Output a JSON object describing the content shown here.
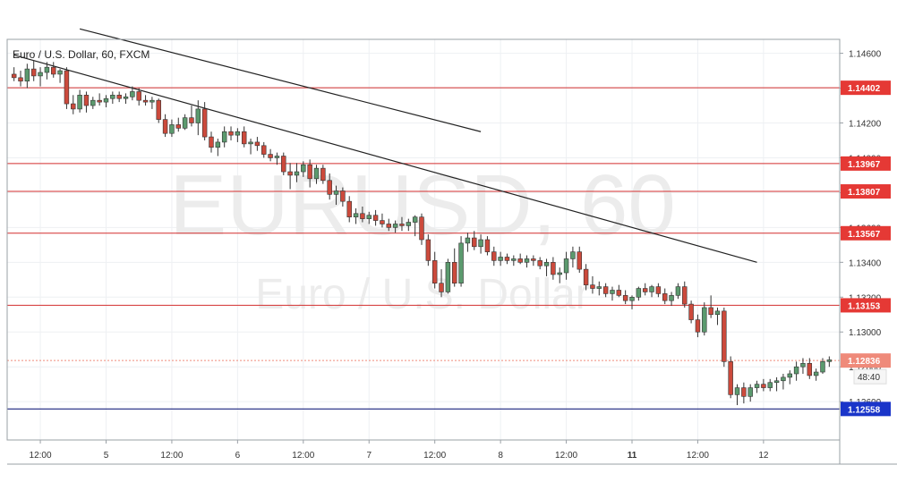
{
  "legend": {
    "text": "Euro / U.S. Dollar, 60, FXCM"
  },
  "watermark": {
    "main": "EURUSD, 60",
    "sub": "Euro / U.S. Dollar"
  },
  "colors": {
    "up": "#5b9a6e",
    "down": "#cc4a3c",
    "level_line": "#d32f2f",
    "level_badge": "#e53935",
    "current_badge": "#ef8a7a",
    "low_line": "#1a237e",
    "low_badge": "#1a35c9",
    "trendline": "#222222",
    "grid": "#eef0f3",
    "axis_text": "#333333"
  },
  "chart_data": {
    "type": "candlestick",
    "symbol": "EURUSD",
    "timeframe": "60",
    "source": "FXCM",
    "title": "Euro / U.S. Dollar, 60, FXCM",
    "ylim": [
      1.1238,
      1.1468
    ],
    "y_ticks": [
      "1.14600",
      "1.14400",
      "1.14200",
      "1.14000",
      "1.13800",
      "1.13600",
      "1.13400",
      "1.13200",
      "1.13000",
      "1.12800",
      "1.12600"
    ],
    "x_ticks": [
      {
        "label": "12:00",
        "i": 4.5,
        "bold": false
      },
      {
        "label": "5",
        "i": 14.5,
        "bold": false
      },
      {
        "label": "12:00",
        "i": 24.5,
        "bold": false
      },
      {
        "label": "6",
        "i": 34.5,
        "bold": false
      },
      {
        "label": "12:00",
        "i": 44.5,
        "bold": false
      },
      {
        "label": "7",
        "i": 54.5,
        "bold": false
      },
      {
        "label": "12:00",
        "i": 64.5,
        "bold": false
      },
      {
        "label": "8",
        "i": 74.5,
        "bold": false
      },
      {
        "label": "12:00",
        "i": 84.5,
        "bold": false
      },
      {
        "label": "11",
        "i": 94.5,
        "bold": true
      },
      {
        "label": "12:00",
        "i": 104.5,
        "bold": false
      },
      {
        "label": "12",
        "i": 114.5,
        "bold": false
      }
    ],
    "levels": [
      {
        "value": 1.14402,
        "label": "1.14402"
      },
      {
        "value": 1.13967,
        "label": "1.13967"
      },
      {
        "value": 1.13807,
        "label": "1.13807"
      },
      {
        "value": 1.13567,
        "label": "1.13567"
      },
      {
        "value": 1.13153,
        "label": "1.13153"
      }
    ],
    "current": {
      "value": 1.12836,
      "label": "1.12836",
      "countdown": "48:40"
    },
    "low_level": {
      "value": 1.12558,
      "label": "1.12558"
    },
    "trendlines": [
      {
        "i1": 10.5,
        "p1": 1.1474,
        "i2": 71.5,
        "p2": 1.1415
      },
      {
        "i1": 0.5,
        "p1": 1.1459,
        "i2": 113.5,
        "p2": 1.134
      }
    ],
    "candles": [
      [
        1.1448,
        1.1452,
        1.1444,
        1.1446
      ],
      [
        1.1446,
        1.145,
        1.1441,
        1.1444
      ],
      [
        1.1444,
        1.1454,
        1.144,
        1.1451
      ],
      [
        1.1451,
        1.1456,
        1.1444,
        1.1447
      ],
      [
        1.1447,
        1.1452,
        1.1441,
        1.1449
      ],
      [
        1.1449,
        1.1455,
        1.1445,
        1.1452
      ],
      [
        1.1452,
        1.1455,
        1.1446,
        1.1448
      ],
      [
        1.1448,
        1.1451,
        1.1443,
        1.145
      ],
      [
        1.145,
        1.1452,
        1.1428,
        1.1431
      ],
      [
        1.1431,
        1.1436,
        1.1425,
        1.1428
      ],
      [
        1.1428,
        1.1439,
        1.1426,
        1.1436
      ],
      [
        1.1436,
        1.1438,
        1.1426,
        1.143
      ],
      [
        1.143,
        1.1435,
        1.1428,
        1.1433
      ],
      [
        1.1433,
        1.1437,
        1.143,
        1.1432
      ],
      [
        1.1432,
        1.1436,
        1.1429,
        1.1434
      ],
      [
        1.1434,
        1.1438,
        1.1431,
        1.1436
      ],
      [
        1.1436,
        1.1438,
        1.1432,
        1.1434
      ],
      [
        1.1434,
        1.1437,
        1.1431,
        1.1435
      ],
      [
        1.1435,
        1.1441,
        1.1433,
        1.1438
      ],
      [
        1.1438,
        1.144,
        1.143,
        1.1433
      ],
      [
        1.1433,
        1.1436,
        1.143,
        1.1432
      ],
      [
        1.1432,
        1.1435,
        1.1428,
        1.1433
      ],
      [
        1.1433,
        1.1434,
        1.142,
        1.1422
      ],
      [
        1.1422,
        1.1425,
        1.1412,
        1.1414
      ],
      [
        1.1414,
        1.1422,
        1.1412,
        1.1419
      ],
      [
        1.1419,
        1.1423,
        1.1415,
        1.1417
      ],
      [
        1.1417,
        1.1425,
        1.1416,
        1.1423
      ],
      [
        1.1423,
        1.143,
        1.1418,
        1.142
      ],
      [
        1.142,
        1.1433,
        1.1413,
        1.1428
      ],
      [
        1.1428,
        1.1432,
        1.141,
        1.1412
      ],
      [
        1.1412,
        1.1415,
        1.1403,
        1.1406
      ],
      [
        1.1406,
        1.1411,
        1.1401,
        1.1409
      ],
      [
        1.1409,
        1.1418,
        1.1406,
        1.1415
      ],
      [
        1.1415,
        1.1418,
        1.141,
        1.1413
      ],
      [
        1.1413,
        1.1417,
        1.1409,
        1.1415
      ],
      [
        1.1415,
        1.1418,
        1.1406,
        1.1408
      ],
      [
        1.1408,
        1.1411,
        1.1402,
        1.1409
      ],
      [
        1.1409,
        1.1412,
        1.1404,
        1.1407
      ],
      [
        1.1407,
        1.1409,
        1.14,
        1.1402
      ],
      [
        1.1402,
        1.1405,
        1.1398,
        1.14
      ],
      [
        1.14,
        1.1403,
        1.1396,
        1.1401
      ],
      [
        1.1401,
        1.1403,
        1.139,
        1.1392
      ],
      [
        1.1392,
        1.1397,
        1.1382,
        1.139
      ],
      [
        1.139,
        1.1397,
        1.1386,
        1.1392
      ],
      [
        1.1392,
        1.1398,
        1.1389,
        1.1396
      ],
      [
        1.1396,
        1.1399,
        1.1383,
        1.1388
      ],
      [
        1.1388,
        1.1396,
        1.1385,
        1.1394
      ],
      [
        1.1394,
        1.1396,
        1.1385,
        1.1387
      ],
      [
        1.1387,
        1.1391,
        1.1376,
        1.1379
      ],
      [
        1.1379,
        1.1384,
        1.1373,
        1.1381
      ],
      [
        1.1381,
        1.1383,
        1.1372,
        1.1375
      ],
      [
        1.1375,
        1.1378,
        1.1363,
        1.1366
      ],
      [
        1.1366,
        1.1371,
        1.1362,
        1.1368
      ],
      [
        1.1368,
        1.1372,
        1.1363,
        1.1365
      ],
      [
        1.1365,
        1.1369,
        1.1362,
        1.1367
      ],
      [
        1.1367,
        1.137,
        1.1361,
        1.1364
      ],
      [
        1.1364,
        1.1368,
        1.136,
        1.1362
      ],
      [
        1.1362,
        1.1365,
        1.1358,
        1.136
      ],
      [
        1.136,
        1.1364,
        1.1357,
        1.1362
      ],
      [
        1.1362,
        1.1366,
        1.1358,
        1.1361
      ],
      [
        1.1361,
        1.1365,
        1.1358,
        1.1363
      ],
      [
        1.1363,
        1.1367,
        1.1355,
        1.1366
      ],
      [
        1.1366,
        1.1368,
        1.135,
        1.1353
      ],
      [
        1.1353,
        1.1356,
        1.1338,
        1.1341
      ],
      [
        1.1341,
        1.1346,
        1.1325,
        1.1328
      ],
      [
        1.1328,
        1.1336,
        1.132,
        1.1323
      ],
      [
        1.1323,
        1.1342,
        1.1322,
        1.134
      ],
      [
        1.134,
        1.1348,
        1.1326,
        1.1328
      ],
      [
        1.1328,
        1.1355,
        1.1326,
        1.1351
      ],
      [
        1.1351,
        1.1357,
        1.1346,
        1.1354
      ],
      [
        1.1354,
        1.1358,
        1.1347,
        1.1349
      ],
      [
        1.1349,
        1.1356,
        1.1345,
        1.1353
      ],
      [
        1.1353,
        1.1355,
        1.1344,
        1.1346
      ],
      [
        1.1346,
        1.1349,
        1.1338,
        1.1341
      ],
      [
        1.1341,
        1.1346,
        1.1338,
        1.1343
      ],
      [
        1.1343,
        1.1345,
        1.1339,
        1.1341
      ],
      [
        1.1341,
        1.1344,
        1.1338,
        1.1342
      ],
      [
        1.1342,
        1.1345,
        1.1339,
        1.134
      ],
      [
        1.134,
        1.1344,
        1.1337,
        1.1342
      ],
      [
        1.1342,
        1.1344,
        1.1338,
        1.1341
      ],
      [
        1.1341,
        1.1343,
        1.1336,
        1.1338
      ],
      [
        1.1338,
        1.1342,
        1.1332,
        1.134
      ],
      [
        1.134,
        1.1343,
        1.133,
        1.1333
      ],
      [
        1.1333,
        1.1337,
        1.1328,
        1.1334
      ],
      [
        1.1334,
        1.1346,
        1.133,
        1.1342
      ],
      [
        1.1342,
        1.1349,
        1.1337,
        1.1346
      ],
      [
        1.1346,
        1.1349,
        1.1334,
        1.1336
      ],
      [
        1.1336,
        1.1339,
        1.1324,
        1.1327
      ],
      [
        1.1327,
        1.1332,
        1.1322,
        1.1325
      ],
      [
        1.1325,
        1.1329,
        1.1321,
        1.1326
      ],
      [
        1.1326,
        1.1328,
        1.132,
        1.1322
      ],
      [
        1.1322,
        1.1326,
        1.1318,
        1.1324
      ],
      [
        1.1324,
        1.1327,
        1.132,
        1.1321
      ],
      [
        1.1321,
        1.1324,
        1.1316,
        1.1318
      ],
      [
        1.1318,
        1.1321,
        1.1313,
        1.132
      ],
      [
        1.132,
        1.1326,
        1.1318,
        1.1325
      ],
      [
        1.1325,
        1.1328,
        1.1321,
        1.1323
      ],
      [
        1.1323,
        1.1327,
        1.132,
        1.1326
      ],
      [
        1.1326,
        1.1328,
        1.132,
        1.1322
      ],
      [
        1.1322,
        1.1325,
        1.1316,
        1.1318
      ],
      [
        1.1318,
        1.1323,
        1.1315,
        1.1321
      ],
      [
        1.1321,
        1.1328,
        1.1319,
        1.1326
      ],
      [
        1.1326,
        1.1329,
        1.1314,
        1.1316
      ],
      [
        1.1316,
        1.1318,
        1.1305,
        1.1307
      ],
      [
        1.1307,
        1.131,
        1.1297,
        1.13
      ],
      [
        1.13,
        1.1317,
        1.1298,
        1.1314
      ],
      [
        1.1314,
        1.1321,
        1.1308,
        1.131
      ],
      [
        1.131,
        1.1314,
        1.1304,
        1.1312
      ],
      [
        1.1312,
        1.1314,
        1.128,
        1.1283
      ],
      [
        1.1283,
        1.1286,
        1.1262,
        1.1264
      ],
      [
        1.1264,
        1.127,
        1.1258,
        1.1268
      ],
      [
        1.1268,
        1.1271,
        1.1259,
        1.1263
      ],
      [
        1.1263,
        1.127,
        1.126,
        1.1268
      ],
      [
        1.1268,
        1.1272,
        1.1265,
        1.127
      ],
      [
        1.127,
        1.1273,
        1.1266,
        1.1268
      ],
      [
        1.1268,
        1.1273,
        1.1266,
        1.1271
      ],
      [
        1.1271,
        1.1274,
        1.1266,
        1.1272
      ],
      [
        1.1272,
        1.1276,
        1.1267,
        1.1274
      ],
      [
        1.1274,
        1.1278,
        1.127,
        1.1276
      ],
      [
        1.1276,
        1.1283,
        1.1272,
        1.128
      ],
      [
        1.128,
        1.1285,
        1.1276,
        1.1282
      ],
      [
        1.1282,
        1.1285,
        1.1273,
        1.1275
      ],
      [
        1.1275,
        1.1279,
        1.1272,
        1.1277
      ],
      [
        1.1277,
        1.1285,
        1.1276,
        1.1283
      ],
      [
        1.1283,
        1.1286,
        1.128,
        1.1284
      ]
    ]
  }
}
